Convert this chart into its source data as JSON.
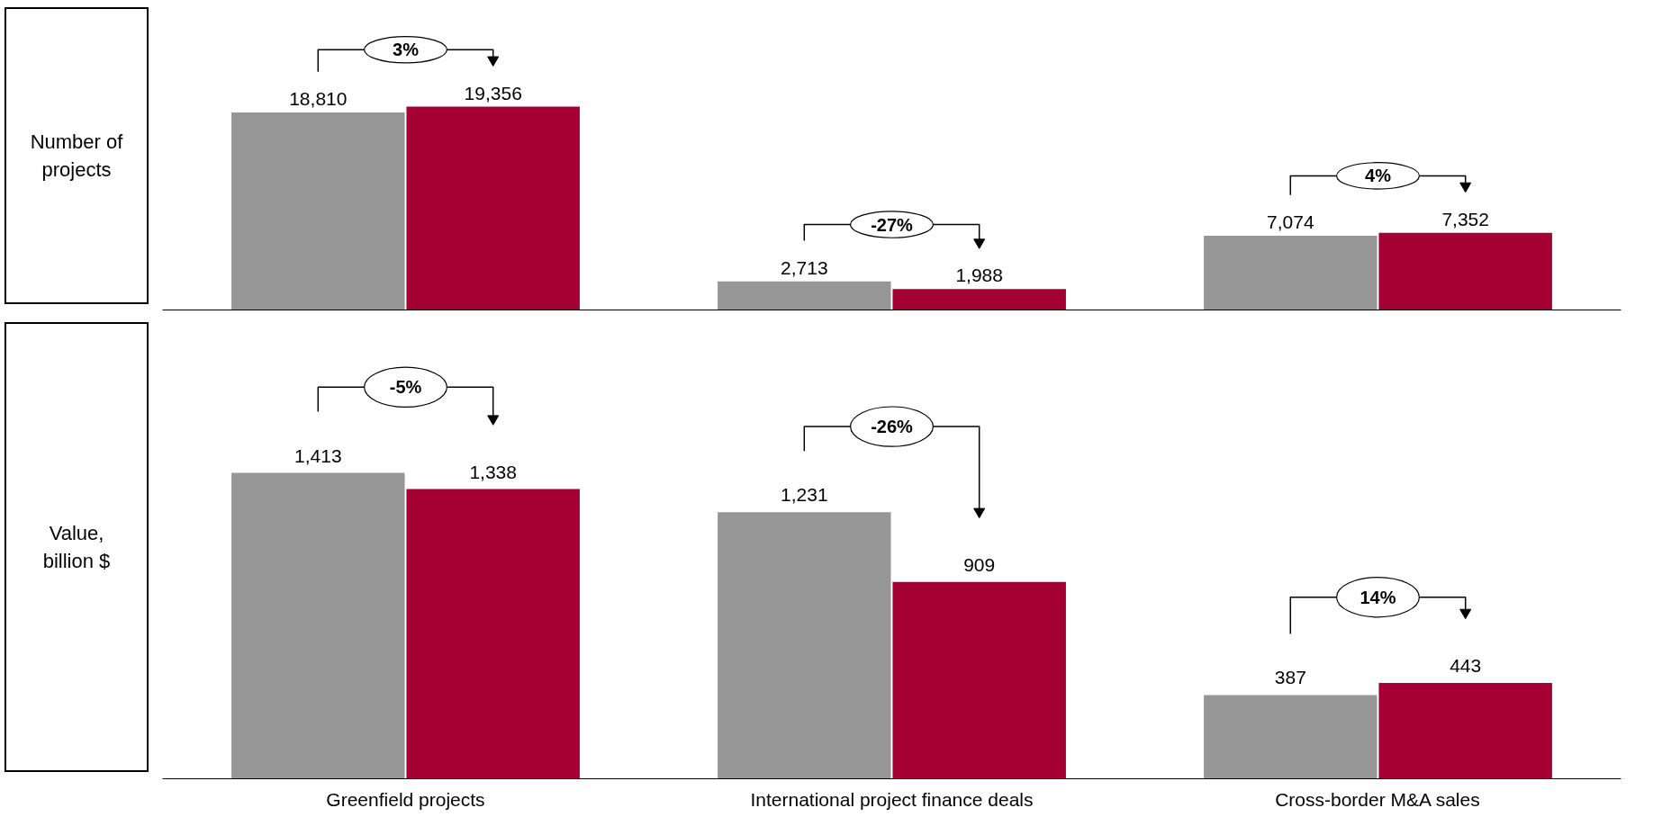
{
  "chart_data": [
    {
      "type": "bar",
      "ylabel": "Number of projects",
      "categories": [
        null,
        null,
        null
      ],
      "series": [
        {
          "color": "#969696",
          "values": [
            18810,
            2713,
            7074
          ],
          "value_labels": [
            "18,810",
            "2,713",
            "7,074"
          ]
        },
        {
          "color": "#a50034",
          "values": [
            19356,
            1988,
            7352
          ],
          "value_labels": [
            "19,356",
            "1,988",
            "7,352"
          ]
        }
      ],
      "annotations": [
        "3%",
        "-27%",
        "4%"
      ]
    },
    {
      "type": "bar",
      "ylabel": "Value, billion $",
      "categories": [
        "Greenfield projects",
        "International project finance deals",
        "Cross-border M&A sales"
      ],
      "series": [
        {
          "color": "#969696",
          "values": [
            1413,
            1231,
            387
          ],
          "value_labels": [
            "1,413",
            "1,231",
            "387"
          ]
        },
        {
          "color": "#a50034",
          "values": [
            1338,
            909,
            443
          ],
          "value_labels": [
            "1,338",
            "909",
            "443"
          ]
        }
      ],
      "annotations": [
        "-5%",
        "-26%",
        "14%"
      ]
    }
  ]
}
